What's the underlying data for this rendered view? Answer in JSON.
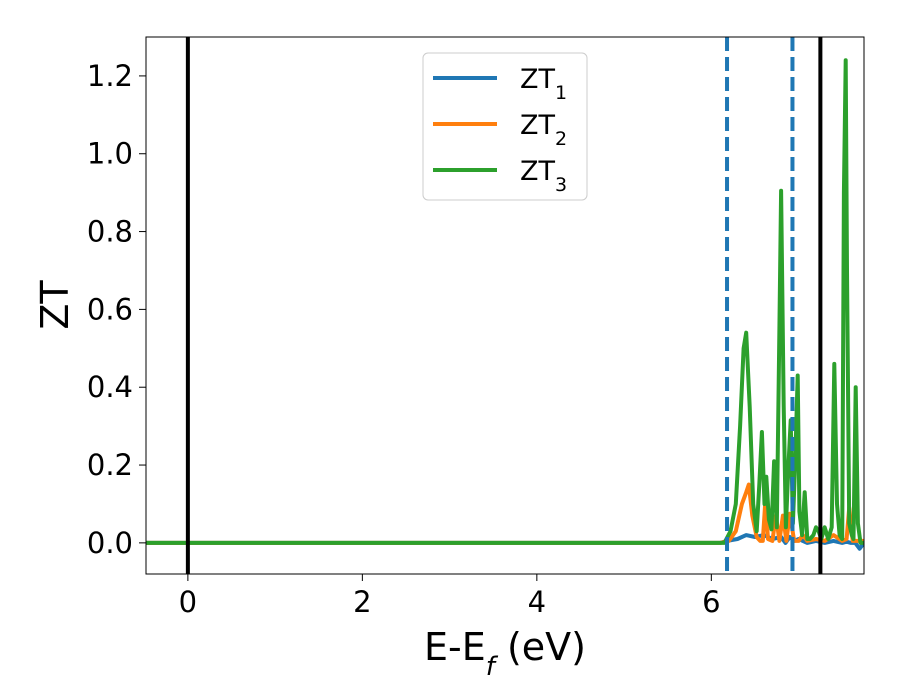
{
  "chart_data": {
    "type": "line",
    "xlabel": "E-E",
    "xlabel_sub": "f",
    "xlabel_unit": " (eV)",
    "ylabel": "ZT",
    "xlim": [
      -0.48,
      7.75
    ],
    "ylim": [
      -0.08,
      1.3
    ],
    "xticks": [
      0,
      2,
      4,
      6
    ],
    "xtick_labels": [
      "0",
      "2",
      "4",
      "6"
    ],
    "yticks": [
      0.0,
      0.2,
      0.4,
      0.6,
      0.8,
      1.0,
      1.2
    ],
    "ytick_labels": [
      "0.0",
      "0.2",
      "0.4",
      "0.6",
      "0.8",
      "1.0",
      "1.2"
    ],
    "grid": false,
    "legend_position": "top-center",
    "vertical_lines": [
      {
        "x": 0.0,
        "style": "solid",
        "color": "#000000"
      },
      {
        "x": 7.25,
        "style": "solid",
        "color": "#000000"
      },
      {
        "x": 6.18,
        "style": "dashed",
        "color": "#1f77b4"
      },
      {
        "x": 6.93,
        "style": "dashed",
        "color": "#1f77b4"
      }
    ],
    "series": [
      {
        "name": "ZT",
        "name_sub": "1",
        "color": "#1f77b4",
        "x": [
          -0.48,
          6.1,
          6.18,
          6.3,
          6.4,
          6.5,
          6.6,
          6.7,
          6.8,
          6.85,
          6.9,
          6.95,
          7.0,
          7.1,
          7.2,
          7.3,
          7.4,
          7.5,
          7.55,
          7.6,
          7.65,
          7.7,
          7.75
        ],
        "y": [
          0.0,
          0.0,
          0.005,
          0.01,
          0.02,
          0.015,
          0.02,
          0.01,
          0.015,
          0.0,
          0.015,
          0.005,
          0.01,
          0.0,
          0.005,
          0.0,
          0.005,
          0.0,
          0.003,
          0.0,
          0.0,
          -0.015,
          0.0
        ]
      },
      {
        "name": "ZT",
        "name_sub": "2",
        "color": "#ff7f0e",
        "x": [
          -0.48,
          6.1,
          6.2,
          6.28,
          6.35,
          6.4,
          6.43,
          6.47,
          6.52,
          6.56,
          6.59,
          6.62,
          6.65,
          6.7,
          6.74,
          6.78,
          6.82,
          6.86,
          6.9,
          6.95,
          7.0,
          7.05,
          7.1,
          7.2,
          7.3,
          7.4,
          7.5,
          7.55,
          7.58,
          7.62,
          7.67,
          7.7,
          7.75
        ],
        "y": [
          0.0,
          0.0,
          0.005,
          0.03,
          0.1,
          0.13,
          0.15,
          0.07,
          0.015,
          0.005,
          0.005,
          0.11,
          0.01,
          0.005,
          0.07,
          0.005,
          0.07,
          0.005,
          0.075,
          0.005,
          0.005,
          0.02,
          0.005,
          0.01,
          0.005,
          0.02,
          0.005,
          0.01,
          0.09,
          0.005,
          0.005,
          0.005,
          0.005
        ]
      },
      {
        "name": "ZT",
        "name_sub": "3",
        "color": "#2ca02c",
        "x": [
          -0.48,
          6.15,
          6.22,
          6.28,
          6.33,
          6.37,
          6.4,
          6.44,
          6.48,
          6.52,
          6.55,
          6.58,
          6.61,
          6.63,
          6.66,
          6.69,
          6.72,
          6.75,
          6.78,
          6.8,
          6.83,
          6.855,
          6.88,
          6.91,
          6.935,
          6.96,
          6.99,
          7.01,
          7.04,
          7.07,
          7.1,
          7.13,
          7.17,
          7.2,
          7.23,
          7.26,
          7.3,
          7.34,
          7.38,
          7.41,
          7.44,
          7.47,
          7.5,
          7.52,
          7.54,
          7.555,
          7.58,
          7.61,
          7.63,
          7.655,
          7.68,
          7.71,
          7.75
        ],
        "y": [
          0.0,
          0.0,
          0.03,
          0.1,
          0.3,
          0.5,
          0.54,
          0.35,
          0.1,
          0.03,
          0.15,
          0.285,
          0.1,
          0.17,
          0.06,
          0.035,
          0.21,
          0.04,
          0.55,
          0.905,
          0.35,
          0.04,
          0.18,
          0.315,
          0.05,
          0.2,
          0.43,
          0.08,
          0.02,
          0.13,
          0.01,
          0.01,
          0.02,
          0.04,
          0.03,
          0.01,
          0.04,
          0.01,
          0.04,
          0.46,
          0.1,
          0.02,
          0.01,
          0.9,
          1.24,
          0.7,
          0.05,
          0.02,
          0.01,
          0.4,
          0.05,
          0.0,
          0.0
        ]
      }
    ]
  }
}
